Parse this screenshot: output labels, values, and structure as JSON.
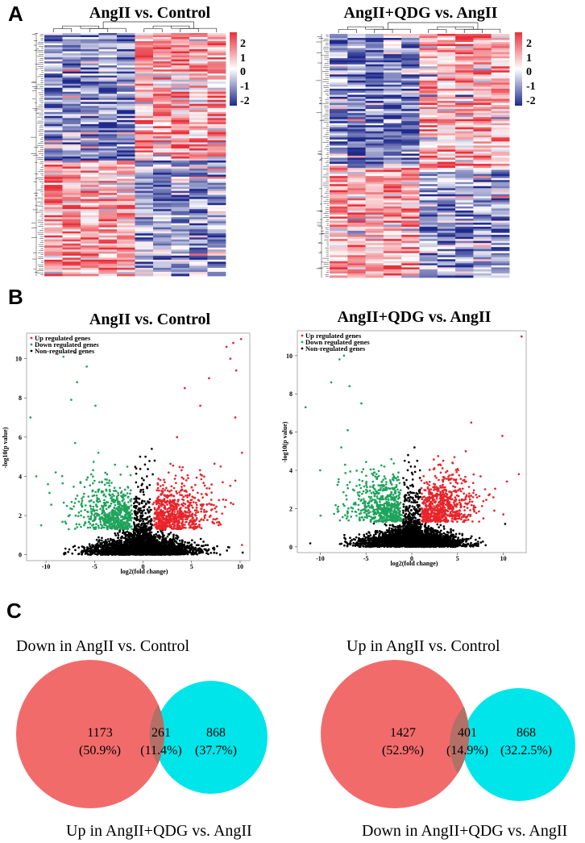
{
  "panel_labels": [
    "A",
    "B",
    "C"
  ],
  "colors": {
    "up": "#e8242a",
    "down": "#1fa35c",
    "non": "#000000",
    "heat_low": "#1f2a8c",
    "heat_mid": "#ffffff",
    "heat_high": "#e8303a",
    "venn_left": "#f26b6b",
    "venn_right": "#00e5ea",
    "venn_overlap": "#b27067"
  },
  "chart_data": [
    {
      "type": "heatmap",
      "panel": "A",
      "title": "AngII vs. Control",
      "colorbar": {
        "ticks": [
          "2",
          "1",
          "0",
          "-1",
          "-2"
        ],
        "range": [
          -2,
          2
        ]
      },
      "columns": 10,
      "pattern": "upper block: left columns low / right columns high; lower block reversed"
    },
    {
      "type": "heatmap",
      "panel": "A",
      "title": "AngII+QDG vs. AngII",
      "colorbar": {
        "ticks": [
          "2",
          "1",
          "0",
          "-1",
          "-2"
        ],
        "range": [
          -2,
          2
        ]
      },
      "columns": 10,
      "pattern": "upper block: left columns low / right columns high; lower block reversed"
    },
    {
      "type": "scatter",
      "panel": "B",
      "title": "AngII vs. Control",
      "xlabel": "log2(fold change)",
      "ylabel": "-log10(p value)",
      "xlim": [
        -12,
        11
      ],
      "ylim": [
        -0.3,
        11.3
      ],
      "xticks": [
        "-10",
        "-5",
        "0",
        "5",
        "10"
      ],
      "yticks": [
        "0",
        "2",
        "4",
        "6",
        "8",
        "10"
      ],
      "legend": [
        "Up regulated genes",
        "Down regulated genes",
        "Non-regulated genes"
      ],
      "threshold_y": 1.3,
      "threshold_x": 1,
      "up_outliers": [
        [
          8.6,
          10.6
        ],
        [
          9.3,
          10.8
        ],
        [
          10.1,
          11.0
        ],
        [
          9.0,
          10.0
        ],
        [
          9.6,
          9.4
        ],
        [
          6.8,
          9.0
        ],
        [
          4.3,
          8.5
        ],
        [
          5.9,
          7.6
        ],
        [
          3.5,
          6.0
        ],
        [
          9.5,
          7.0
        ],
        [
          10.2,
          5.2
        ],
        [
          8.0,
          4.5
        ],
        [
          10.2,
          0.5
        ]
      ],
      "down_outliers": [
        [
          -7.0,
          10.3
        ],
        [
          -8.2,
          10.1
        ],
        [
          -5.8,
          9.6
        ],
        [
          -6.8,
          8.8
        ],
        [
          -7.4,
          7.9
        ],
        [
          -4.9,
          7.6
        ],
        [
          -11.6,
          7.0
        ],
        [
          -4.6,
          5.2
        ],
        [
          -7.0,
          5.7
        ],
        [
          -11.0,
          4.0
        ],
        [
          -9.8,
          3.6
        ],
        [
          -10.5,
          1.5
        ],
        [
          -9.0,
          4.2
        ]
      ],
      "non_outliers": [
        [
          0.9,
          5.4
        ],
        [
          -0.3,
          5.0
        ],
        [
          1.2,
          4.8
        ],
        [
          0.2,
          4.6
        ],
        [
          -0.7,
          4.4
        ],
        [
          1.0,
          4.1
        ],
        [
          -0.1,
          3.9
        ],
        [
          0.4,
          4.0
        ]
      ]
    },
    {
      "type": "scatter",
      "panel": "B",
      "title": "AngII+QDG vs. AngII",
      "xlabel": "log2(fold change)",
      "ylabel": "-log10(p value)",
      "xlim": [
        -12.5,
        12.5
      ],
      "ylim": [
        -0.3,
        11.3
      ],
      "xticks": [
        "-10",
        "-5",
        "0",
        "5",
        "10"
      ],
      "yticks": [
        "0",
        "2",
        "4",
        "6",
        "8",
        "10"
      ],
      "legend": [
        "Up regulated genes",
        "Down regulated genes",
        "Non-regulated genes"
      ],
      "threshold_y": 1.3,
      "threshold_x": 1,
      "up_outliers": [
        [
          12.0,
          11.0
        ],
        [
          9.9,
          5.8
        ],
        [
          10.0,
          1.7
        ],
        [
          11.7,
          3.8
        ],
        [
          6.5,
          6.5
        ],
        [
          5.9,
          5.0
        ]
      ],
      "down_outliers": [
        [
          -7.4,
          10.0
        ],
        [
          -7.9,
          9.8
        ],
        [
          -8.8,
          8.6
        ],
        [
          -11.6,
          7.3
        ],
        [
          -6.8,
          8.4
        ],
        [
          -5.5,
          7.5
        ],
        [
          -7.0,
          6.1
        ],
        [
          -7.7,
          5.2
        ],
        [
          -10.0,
          4.0
        ],
        [
          -3.0,
          4.2
        ]
      ],
      "non_outliers": [
        [
          0.3,
          5.2
        ],
        [
          -0.4,
          4.8
        ],
        [
          0.6,
          4.5
        ],
        [
          -0.1,
          4.2
        ],
        [
          0.9,
          4.0
        ],
        [
          10.2,
          1.2
        ]
      ]
    },
    {
      "type": "venn",
      "panel": "C",
      "left_label": "Down in AngII vs. Control",
      "right_label": "Up in AngII+QDG vs. AngII",
      "left_only": {
        "count": "1173",
        "pct": "(50.9%)"
      },
      "overlap": {
        "count": "261",
        "pct": "(11.4%)"
      },
      "right_only": {
        "count": "868",
        "pct": "(37.7%)"
      }
    },
    {
      "type": "venn",
      "panel": "C",
      "left_label": "Up in AngII vs. Control",
      "right_label": "Down in AngII+QDG vs. AngII",
      "left_only": {
        "count": "1427",
        "pct": "(52.9%)"
      },
      "overlap": {
        "count": "401",
        "pct": "(14.9%)"
      },
      "right_only": {
        "count": "868",
        "pct": "(32.2.5%)"
      }
    }
  ]
}
